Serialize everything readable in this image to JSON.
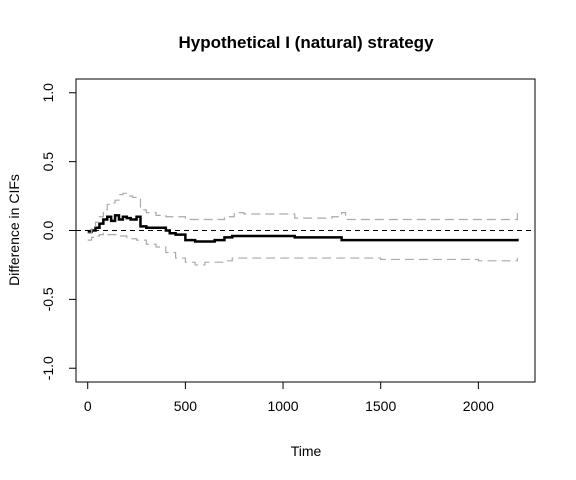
{
  "chart_data": {
    "type": "line",
    "title": "Hypothetical I (natural) strategy",
    "xlabel": "Time",
    "ylabel": "Difference in CIFs",
    "xlim": [
      -60,
      2290
    ],
    "ylim": [
      -1.1,
      1.1
    ],
    "x_ticks": [
      0,
      500,
      1000,
      1500,
      2000
    ],
    "y_ticks": [
      -1.0,
      -0.5,
      0.0,
      0.5,
      1.0
    ],
    "x_tick_labels": [
      "0",
      "500",
      "1000",
      "1500",
      "2000"
    ],
    "y_tick_labels": [
      "-1.0",
      "-0.5",
      "0.0",
      "0.5",
      "1.0"
    ],
    "reference_line": {
      "y": 0,
      "style": "dashed",
      "color": "#000000"
    },
    "grid": false,
    "series": [
      {
        "role": "estimate",
        "color": "#000000",
        "step": true,
        "x": [
          0,
          20,
          40,
          60,
          80,
          100,
          120,
          140,
          160,
          180,
          200,
          220,
          250,
          270,
          300,
          350,
          400,
          420,
          450,
          500,
          550,
          600,
          650,
          700,
          740,
          800,
          1000,
          1060,
          1300,
          1500,
          2000,
          2200
        ],
        "y": [
          -0.01,
          0.0,
          0.02,
          0.05,
          0.08,
          0.1,
          0.07,
          0.11,
          0.08,
          0.1,
          0.09,
          0.08,
          0.1,
          0.03,
          0.02,
          0.02,
          0.0,
          -0.02,
          -0.03,
          -0.07,
          -0.08,
          -0.08,
          -0.07,
          -0.05,
          -0.04,
          -0.04,
          -0.04,
          -0.05,
          -0.07,
          -0.07,
          -0.07,
          -0.06
        ]
      },
      {
        "role": "upper_ci",
        "color": "#aaaaaa",
        "step": true,
        "x": [
          0,
          20,
          40,
          60,
          80,
          100,
          120,
          140,
          160,
          180,
          200,
          230,
          270,
          300,
          350,
          400,
          500,
          600,
          700,
          750,
          800,
          1000,
          1060,
          1250,
          1300,
          1320,
          1500,
          2000,
          2200
        ],
        "y": [
          -0.02,
          0.02,
          0.06,
          0.1,
          0.15,
          0.19,
          0.2,
          0.22,
          0.26,
          0.27,
          0.25,
          0.24,
          0.15,
          0.13,
          0.11,
          0.1,
          0.08,
          0.08,
          0.1,
          0.13,
          0.12,
          0.12,
          0.09,
          0.1,
          0.13,
          0.08,
          0.08,
          0.08,
          0.14
        ]
      },
      {
        "role": "lower_ci",
        "color": "#aaaaaa",
        "step": true,
        "x": [
          0,
          20,
          40,
          60,
          80,
          100,
          150,
          200,
          250,
          300,
          350,
          400,
          450,
          500,
          550,
          600,
          700,
          740,
          800,
          1000,
          1300,
          1500,
          2000,
          2200
        ],
        "y": [
          -0.07,
          -0.05,
          -0.04,
          -0.03,
          -0.02,
          -0.03,
          -0.04,
          -0.06,
          -0.07,
          -0.1,
          -0.12,
          -0.16,
          -0.2,
          -0.23,
          -0.25,
          -0.23,
          -0.22,
          -0.2,
          -0.2,
          -0.2,
          -0.2,
          -0.21,
          -0.22,
          -0.2
        ]
      }
    ]
  }
}
